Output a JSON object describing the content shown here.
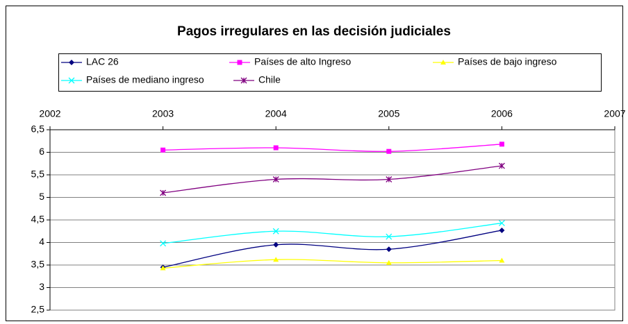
{
  "chart_data": {
    "type": "line",
    "title": "Pagos irregulares en las decisión judiciales",
    "x": [
      2003,
      2004,
      2005,
      2006
    ],
    "xlim": [
      2002,
      2007
    ],
    "xticks": [
      2002,
      2003,
      2004,
      2005,
      2006,
      2007
    ],
    "ylim": [
      2.5,
      6.5
    ],
    "yticks": [
      {
        "value": 2.5,
        "label": "2,5"
      },
      3,
      {
        "value": 3.5,
        "label": "3,5"
      },
      4,
      {
        "value": 4.5,
        "label": "4,5"
      },
      5,
      {
        "value": 5.5,
        "label": "5,5"
      },
      6,
      {
        "value": 6.5,
        "label": "6,5"
      }
    ],
    "grid": true,
    "legend": "top",
    "series": [
      {
        "name": "LAC 26",
        "color": "#000080",
        "marker": "diamond",
        "values": [
          3.45,
          3.95,
          3.85,
          4.27
        ]
      },
      {
        "name": "Países de alto Ingreso",
        "color": "#ff00ff",
        "marker": "square",
        "values": [
          6.05,
          6.1,
          6.02,
          6.18
        ]
      },
      {
        "name": "Países de bajo ingreso",
        "color": "#ffff00",
        "marker": "triangle",
        "values": [
          3.43,
          3.62,
          3.55,
          3.6
        ]
      },
      {
        "name": "Países de mediano ingreso",
        "color": "#00ffff",
        "marker": "x",
        "values": [
          3.98,
          4.25,
          4.13,
          4.43
        ]
      },
      {
        "name": "Chile",
        "color": "#800080",
        "marker": "star",
        "values": [
          5.1,
          5.4,
          5.4,
          5.7
        ]
      }
    ]
  }
}
